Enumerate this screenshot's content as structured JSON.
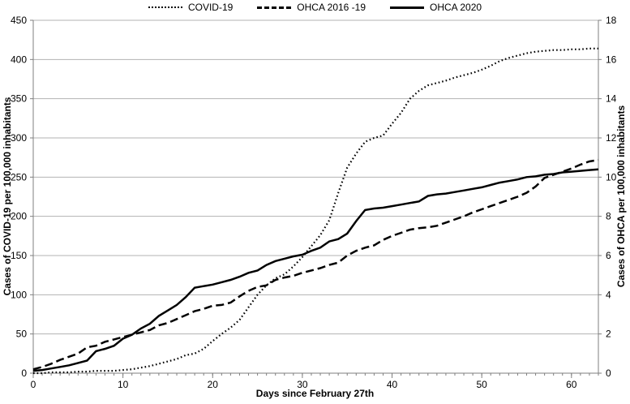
{
  "colors": {
    "line": "#000000",
    "grid": "#b3b3b3",
    "axis": "#7f7f7f",
    "text": "#000000"
  },
  "chart_data": {
    "type": "line",
    "title": "",
    "xlabel": "Days since February 27th",
    "ylabel_left": "Cases of COVID-19 per 100,000 inhabitants",
    "ylabel_right": "Cases of OHCA per 100,000 inhabitants",
    "x_range": [
      0,
      63
    ],
    "x_major_ticks": [
      0,
      10,
      20,
      30,
      40,
      50,
      60
    ],
    "x_minor_step": 1,
    "y_left_range": [
      0,
      450
    ],
    "y_left_step": 50,
    "y_right_range": [
      0,
      18
    ],
    "y_right_step": 2,
    "grid": "horizontal-only",
    "legend_position": "top-center",
    "x": [
      0,
      1,
      2,
      3,
      4,
      5,
      6,
      7,
      8,
      9,
      10,
      11,
      12,
      13,
      14,
      15,
      16,
      17,
      18,
      19,
      20,
      21,
      22,
      23,
      24,
      25,
      26,
      27,
      28,
      29,
      30,
      31,
      32,
      33,
      34,
      35,
      36,
      37,
      38,
      39,
      40,
      41,
      42,
      43,
      44,
      45,
      46,
      47,
      48,
      49,
      50,
      51,
      52,
      53,
      54,
      55,
      56,
      57,
      58,
      59,
      60,
      61,
      62,
      63
    ],
    "series": [
      {
        "id": "covid-19",
        "name": "COVID-19",
        "axis": "left",
        "style": "dotted",
        "values": [
          0,
          0,
          1,
          1,
          1,
          2,
          2,
          3,
          3,
          3,
          4,
          5,
          7,
          9,
          12,
          15,
          18,
          23,
          25,
          31,
          41,
          50,
          58,
          68,
          84,
          100,
          112,
          121,
          126,
          136,
          148,
          162,
          176,
          195,
          230,
          262,
          280,
          295,
          300,
          303,
          318,
          332,
          350,
          360,
          367,
          370,
          373,
          377,
          380,
          383,
          387,
          392,
          398,
          402,
          405,
          408,
          410,
          411,
          412,
          412,
          413,
          413,
          414,
          414
        ]
      },
      {
        "id": "ohca-2016-19",
        "name": "OHCA 2016 -19",
        "axis": "right",
        "style": "dashed",
        "values": [
          0.2,
          0.32,
          0.48,
          0.68,
          0.84,
          1.0,
          1.32,
          1.4,
          1.6,
          1.72,
          1.84,
          1.96,
          2.08,
          2.2,
          2.44,
          2.56,
          2.76,
          2.96,
          3.16,
          3.28,
          3.44,
          3.48,
          3.6,
          3.92,
          4.2,
          4.4,
          4.48,
          4.76,
          4.88,
          4.96,
          5.12,
          5.24,
          5.36,
          5.52,
          5.64,
          6.0,
          6.24,
          6.4,
          6.52,
          6.8,
          7.0,
          7.16,
          7.32,
          7.4,
          7.44,
          7.52,
          7.68,
          7.84,
          8.0,
          8.2,
          8.36,
          8.52,
          8.68,
          8.84,
          9.0,
          9.2,
          9.52,
          9.96,
          10.12,
          10.28,
          10.44,
          10.64,
          10.8,
          10.88
        ]
      },
      {
        "id": "ohca-2020",
        "name": "OHCA 2020",
        "axis": "right",
        "style": "solid",
        "values": [
          0.12,
          0.16,
          0.24,
          0.32,
          0.4,
          0.52,
          0.64,
          1.12,
          1.24,
          1.4,
          1.76,
          1.96,
          2.28,
          2.52,
          2.92,
          3.2,
          3.48,
          3.88,
          4.36,
          4.44,
          4.52,
          4.64,
          4.76,
          4.92,
          5.12,
          5.24,
          5.52,
          5.72,
          5.84,
          5.96,
          6.04,
          6.24,
          6.4,
          6.72,
          6.84,
          7.12,
          7.76,
          8.32,
          8.4,
          8.44,
          8.52,
          8.6,
          8.68,
          8.76,
          9.04,
          9.12,
          9.16,
          9.24,
          9.32,
          9.4,
          9.48,
          9.6,
          9.72,
          9.8,
          9.88,
          10.0,
          10.04,
          10.12,
          10.16,
          10.24,
          10.28,
          10.32,
          10.36,
          10.4
        ]
      }
    ]
  }
}
